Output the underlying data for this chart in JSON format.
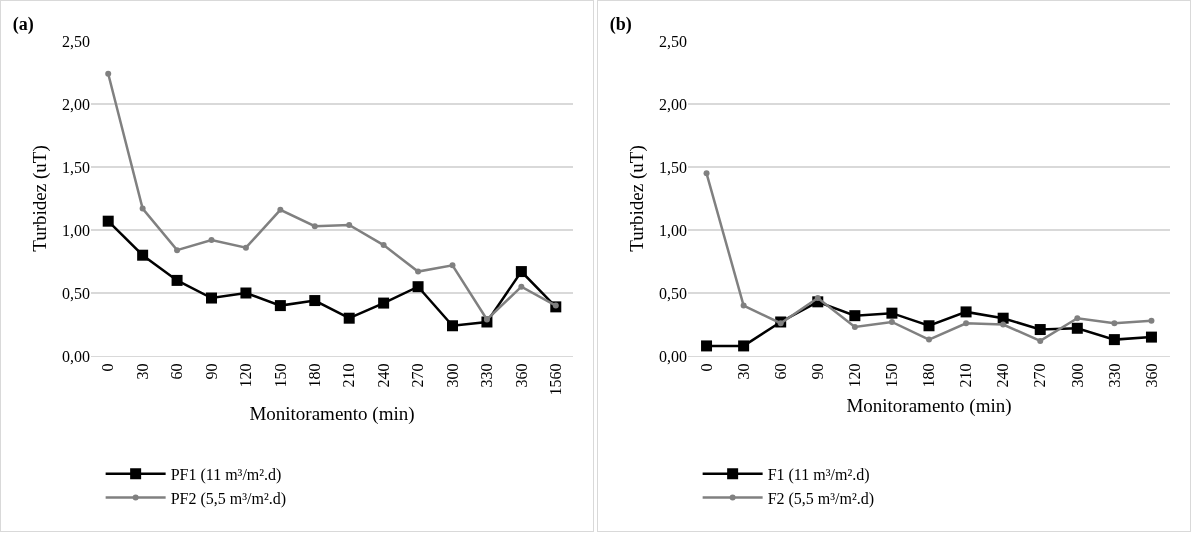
{
  "chart_data": [
    {
      "type": "line",
      "title": "(a)",
      "xlabel": "Monitoramento (min)",
      "ylabel": "Turbidez (uT)",
      "categories": [
        "0",
        "30",
        "60",
        "90",
        "120",
        "150",
        "180",
        "210",
        "240",
        "270",
        "300",
        "330",
        "360",
        "1560"
      ],
      "series": [
        {
          "name": "PF1 (11 m³/m².d)",
          "color": "#000000",
          "marker": "square",
          "values": [
            1.07,
            0.8,
            0.6,
            0.46,
            0.5,
            0.4,
            0.44,
            0.3,
            0.42,
            0.55,
            0.24,
            0.27,
            0.67,
            0.39
          ]
        },
        {
          "name": "PF2 (5,5 m³/m².d)",
          "color": "#808080",
          "marker": "circle",
          "values": [
            2.24,
            1.17,
            0.84,
            0.92,
            0.86,
            1.16,
            1.03,
            1.04,
            0.88,
            0.67,
            0.72,
            0.29,
            0.55,
            0.4
          ]
        }
      ],
      "ylim": [
        0,
        2.5
      ],
      "yticks": [
        {
          "value": 0,
          "label": "0,00"
        },
        {
          "value": 0.5,
          "label": "0,50"
        },
        {
          "value": 1,
          "label": "1,00"
        },
        {
          "value": 1.5,
          "label": "1,50"
        },
        {
          "value": 2,
          "label": "2,00"
        },
        {
          "value": 2.5,
          "label": "2,50"
        }
      ],
      "grid": "y",
      "legend": "bottom",
      "line_style": "solid"
    },
    {
      "type": "line",
      "title": "(b)",
      "xlabel": "Monitoramento (min)",
      "ylabel": "Turbidez (uT)",
      "categories": [
        "0",
        "30",
        "60",
        "90",
        "120",
        "150",
        "180",
        "210",
        "240",
        "270",
        "300",
        "330",
        "360"
      ],
      "series": [
        {
          "name": "F1 (11 m³/m².d)",
          "color": "#000000",
          "marker": "square",
          "values": [
            0.08,
            0.08,
            0.27,
            0.43,
            0.32,
            0.34,
            0.24,
            0.35,
            0.3,
            0.21,
            0.22,
            0.13,
            0.15
          ]
        },
        {
          "name": "F2 (5,5 m³/m².d)",
          "color": "#808080",
          "marker": "circle",
          "values": [
            1.45,
            0.4,
            0.26,
            0.46,
            0.23,
            0.27,
            0.13,
            0.26,
            0.25,
            0.12,
            0.3,
            0.26,
            0.28
          ]
        }
      ],
      "ylim": [
        0,
        2.5
      ],
      "yticks": [
        {
          "value": 0,
          "label": "0,00"
        },
        {
          "value": 0.5,
          "label": "0,50"
        },
        {
          "value": 1,
          "label": "1,00"
        },
        {
          "value": 1.5,
          "label": "1,50"
        },
        {
          "value": 2,
          "label": "2,00"
        },
        {
          "value": 2.5,
          "label": "2,50"
        }
      ],
      "grid": "y",
      "legend": "bottom",
      "line_style": "solid"
    }
  ]
}
